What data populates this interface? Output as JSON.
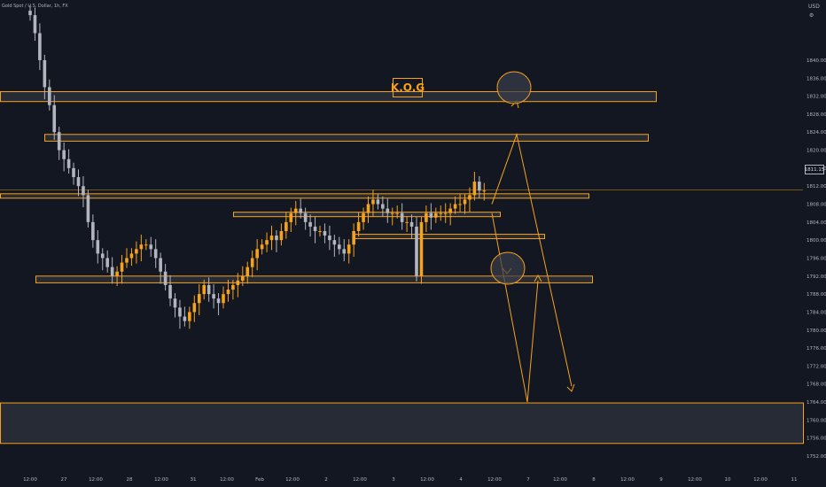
{
  "header": {
    "symbol_label": "Gold Spot / U.S. Dollar, 1h, FX",
    "currency": "USD"
  },
  "annotation": {
    "label": "K.O.G"
  },
  "current_price": "1811.15",
  "colors": {
    "background": "#131722",
    "accent": "#f7a21b",
    "candle_up": "#f7a21b",
    "candle_down": "#b2b5be",
    "zone_fill": "#2a2e39"
  },
  "chart_data": {
    "type": "candlestick",
    "title": "",
    "xlabel": "",
    "ylabel": "",
    "ylim": [
      1752,
      1852
    ],
    "y_ticks": [
      "1840.00",
      "1836.00",
      "1832.00",
      "1828.00",
      "1824.00",
      "1820.00",
      "1816.00",
      "1812.00",
      "1808.00",
      "1804.00",
      "1800.00",
      "1796.00",
      "1792.00",
      "1788.00",
      "1784.00",
      "1780.00",
      "1776.00",
      "1772.00",
      "1768.00",
      "1764.00",
      "1760.00",
      "1756.00",
      "1752.00"
    ],
    "x_ticks": [
      "12:00",
      "27",
      "12:00",
      "28",
      "12:00",
      "31",
      "12:00",
      "Feb",
      "12:00",
      "2",
      "12:00",
      "3",
      "12:00",
      "4",
      "12:00",
      "7",
      "12:00",
      "8",
      "12:00",
      "9",
      "12:00",
      "10",
      "12:00",
      "11"
    ],
    "zones": [
      {
        "top": 1833.0,
        "bottom": 1830.8
      },
      {
        "top": 1823.5,
        "bottom": 1822.0
      },
      {
        "top": 1810.3,
        "bottom": 1809.6
      },
      {
        "top": 1806.2,
        "bottom": 1805.4
      },
      {
        "top": 1801.3,
        "bottom": 1800.5
      },
      {
        "top": 1792.0,
        "bottom": 1790.5
      },
      {
        "top": 1763.8,
        "bottom": 1754.8
      }
    ],
    "closes": [
      1850,
      1846,
      1840,
      1834,
      1830,
      1824,
      1820,
      1818,
      1816,
      1814,
      1812,
      1810,
      1804,
      1800,
      1797,
      1796,
      1794,
      1792,
      1793,
      1795,
      1796,
      1797,
      1798,
      1799,
      1799,
      1798,
      1796,
      1793,
      1790,
      1787,
      1785,
      1783,
      1782,
      1784,
      1786,
      1788,
      1790,
      1788,
      1787,
      1786,
      1788,
      1789,
      1790,
      1791,
      1792,
      1794,
      1796,
      1798,
      1799,
      1800,
      1801,
      1800,
      1802,
      1804,
      1806,
      1807,
      1806,
      1804,
      1803,
      1802,
      1802,
      1801,
      1800,
      1799,
      1798,
      1797,
      1799,
      1802,
      1804,
      1806,
      1808,
      1809,
      1808,
      1807,
      1806,
      1806,
      1806,
      1804,
      1804,
      1803,
      1792,
      1804,
      1806,
      1805,
      1806,
      1806,
      1806,
      1807,
      1808,
      1808,
      1809,
      1810,
      1813,
      1811,
      1811
    ],
    "projection": [
      {
        "x": "Feb 4 15:00",
        "y": 1808.0
      },
      {
        "x": "Feb 7 03:00",
        "y": 1823.5
      },
      {
        "x": "Feb 8 00:00",
        "y": 1767.5
      }
    ],
    "projection_alt": [
      {
        "x": "Feb 4 12:00",
        "y": 1808.0
      },
      {
        "x": "Feb 7 00:00",
        "y": 1764.0
      },
      {
        "x": "Feb 7 12:00",
        "y": 1791.0
      }
    ],
    "circles": [
      {
        "x": "Feb 7 00:00",
        "y": 1827.3
      },
      {
        "x": "Feb 6 12:00",
        "y": 1791.5
      }
    ]
  }
}
